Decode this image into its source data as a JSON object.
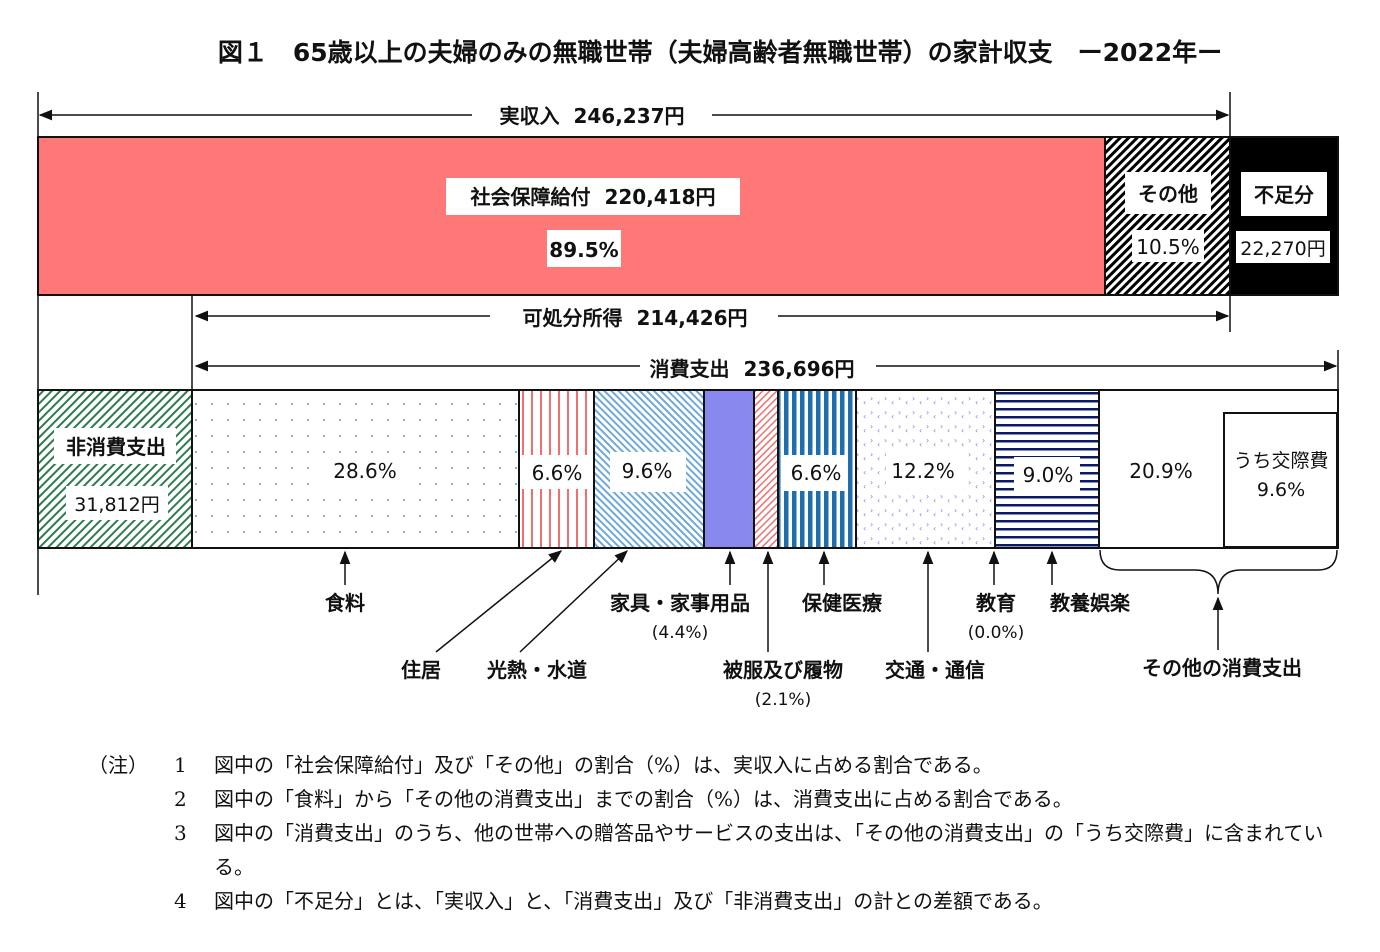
{
  "title": "図１　65歳以上の夫婦のみの無職世帯（夫婦高齢者無職世帯）の家計収支　ー2022年ー",
  "chart_data": {
    "type": "bar",
    "income": {
      "label": "実収入",
      "amount": "246,237円",
      "segments": [
        {
          "name": "社会保障給付",
          "amount": "220,418円",
          "percent": 89.5,
          "percent_label": "89.5%",
          "color": "#ff7878"
        },
        {
          "name": "その他",
          "percent": 10.5,
          "percent_label": "10.5%",
          "color": "#000000"
        }
      ],
      "shortfall": {
        "name": "不足分",
        "amount": "22,270円",
        "color": "#000000"
      }
    },
    "disposable_income": {
      "label": "可処分所得",
      "amount": "214,426円"
    },
    "consumption": {
      "label": "消費支出",
      "amount": "236,696円"
    },
    "non_consumption": {
      "name": "非消費支出",
      "amount": "31,812円",
      "color": "#2e7d4f"
    },
    "expenditure_segments": [
      {
        "name": "食料",
        "percent": 28.6,
        "percent_label": "28.6%",
        "color": "#6fa8dc"
      },
      {
        "name": "住居",
        "percent": 6.6,
        "percent_label": "6.6%",
        "color": "#f07070"
      },
      {
        "name": "光熱・水道",
        "percent": 9.6,
        "percent_label": "9.6%",
        "color": "#6fa8dc"
      },
      {
        "name": "家具・家事用品",
        "percent": 4.4,
        "percent_label": "(4.4%)",
        "color": "#8888ee"
      },
      {
        "name": "被服及び履物",
        "percent": 2.1,
        "percent_label": "(2.1%)",
        "color": "#f07070"
      },
      {
        "name": "保健医療",
        "percent": 6.6,
        "percent_label": "6.6%",
        "color": "#1f6fb0"
      },
      {
        "name": "交通・通信",
        "percent": 12.2,
        "percent_label": "12.2%",
        "color": "#7b7be0"
      },
      {
        "name": "教育",
        "percent": 0.0,
        "percent_label": "(0.0%)",
        "color": "#000000"
      },
      {
        "name": "教養娯楽",
        "percent": 9.0,
        "percent_label": "9.0%",
        "color": "#0a1a6a"
      },
      {
        "name": "その他の消費支出",
        "percent": 20.9,
        "percent_label": "20.9%",
        "color": "#ffffff"
      }
    ],
    "sub_item": {
      "name": "うち交際費",
      "percent": 9.6,
      "percent_label": "9.6%"
    }
  },
  "notes": {
    "head": "（注）",
    "items": [
      {
        "num": "1",
        "text": "図中の「社会保障給付」及び「その他」の割合（%）は、実収入に占める割合である。"
      },
      {
        "num": "2",
        "text": "図中の「食料」から「その他の消費支出」までの割合（%）は、消費支出に占める割合である。"
      },
      {
        "num": "3",
        "text": "図中の「消費支出」のうち、他の世帯への贈答品やサービスの支出は、「その他の消費支出」の「うち交際費」に含まれている。"
      },
      {
        "num": "4",
        "text": "図中の「不足分」とは、「実収入」と、「消費支出」及び「非消費支出」の計との差額である。"
      }
    ]
  }
}
